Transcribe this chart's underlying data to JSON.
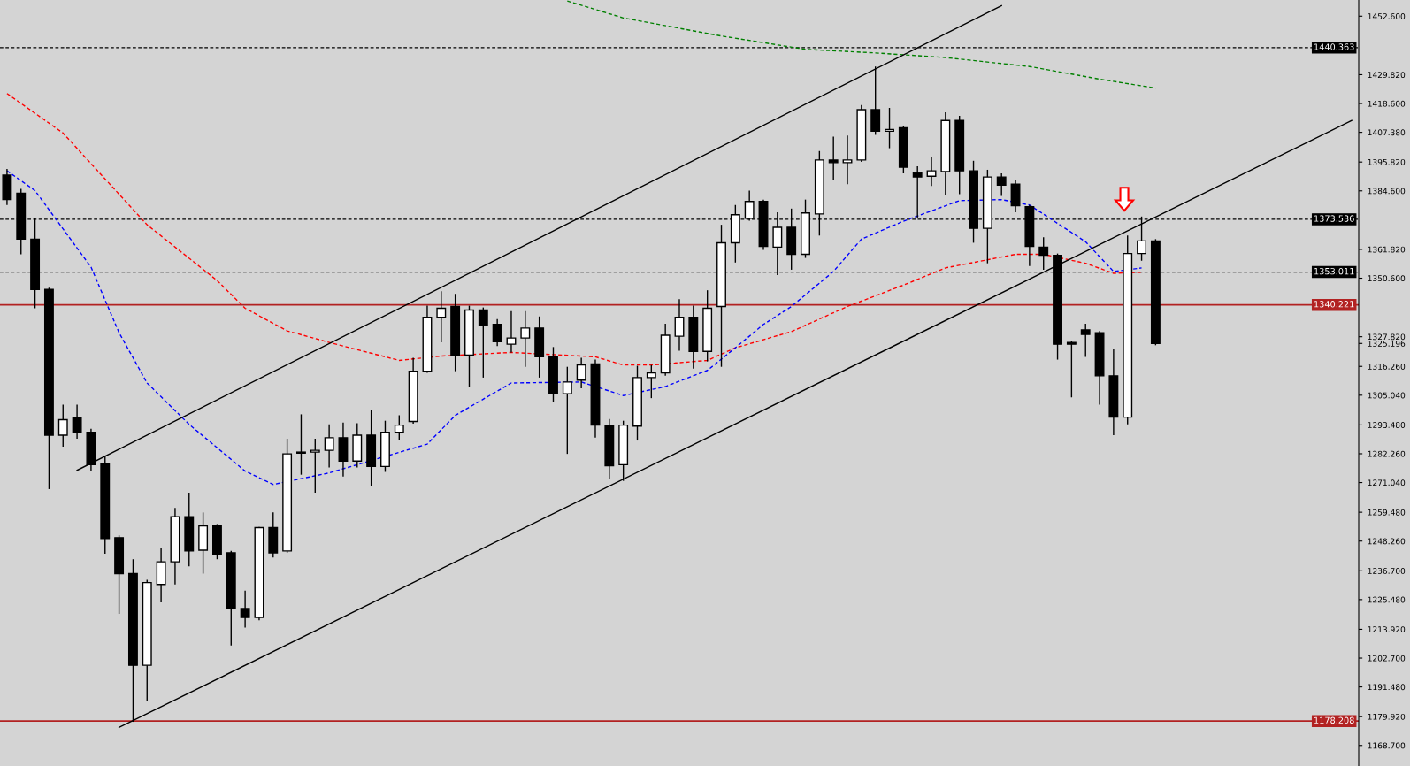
{
  "chart_data": {
    "type": "candlestick",
    "categories": [
      null,
      null,
      null,
      null,
      null,
      null,
      null,
      null,
      null,
      null,
      null,
      null,
      null,
      null,
      null,
      null,
      null,
      null,
      null,
      null,
      null,
      null,
      null,
      null,
      null,
      null,
      null,
      null,
      null,
      null,
      null,
      null,
      null,
      null,
      null,
      null,
      null,
      null,
      null,
      null,
      null,
      null,
      null,
      null,
      null,
      null,
      null,
      null,
      null,
      null,
      null,
      null,
      null,
      null,
      null,
      null,
      null,
      null,
      null,
      null,
      null,
      null,
      null,
      null,
      null,
      null,
      null,
      null,
      null,
      null,
      null,
      null,
      null,
      null,
      null,
      null,
      null,
      null,
      null,
      null,
      null,
      null,
      null,
      null,
      null,
      null,
      null,
      null,
      null,
      null,
      null,
      null,
      null,
      null,
      null,
      null,
      null
    ],
    "ohlc": [
      [
        1390.7,
        1393.1,
        1379.1,
        1381.2
      ],
      [
        1383.7,
        1385.4,
        1359.9,
        1365.8
      ],
      [
        1365.8,
        1374.2,
        1338.9,
        1346.2
      ],
      [
        1346.2,
        1346.9,
        1268.5,
        1289.5
      ],
      [
        1289.5,
        1301.4,
        1285.0,
        1295.5
      ],
      [
        1296.5,
        1301.4,
        1288.1,
        1290.6
      ],
      [
        1290.6,
        1292.0,
        1275.5,
        1278.0
      ],
      [
        1278.3,
        1281.5,
        1243.3,
        1249.3
      ],
      [
        1249.6,
        1250.5,
        1219.9,
        1235.6
      ],
      [
        1235.6,
        1241.2,
        1177.9,
        1199.9
      ],
      [
        1199.9,
        1233.2,
        1185.9,
        1232.1
      ],
      [
        1231.4,
        1245.4,
        1224.4,
        1240.2
      ],
      [
        1240.2,
        1261.2,
        1231.4,
        1257.7
      ],
      [
        1257.7,
        1267.1,
        1238.4,
        1244.4
      ],
      [
        1244.7,
        1259.4,
        1235.6,
        1254.2
      ],
      [
        1254.2,
        1254.9,
        1241.2,
        1243.0
      ],
      [
        1243.7,
        1244.5,
        1207.6,
        1222.0
      ],
      [
        1222.0,
        1229.0,
        1214.6,
        1218.5
      ],
      [
        1218.5,
        1253.8,
        1217.4,
        1253.5
      ],
      [
        1253.5,
        1259.4,
        1241.9,
        1243.7
      ],
      [
        1244.4,
        1288.1,
        1243.7,
        1282.2
      ],
      [
        1282.9,
        1297.6,
        1274.1,
        1282.5
      ],
      [
        1282.9,
        1288.1,
        1267.1,
        1283.6
      ],
      [
        1283.6,
        1293.7,
        1276.9,
        1288.5
      ],
      [
        1288.5,
        1294.4,
        1273.4,
        1279.4
      ],
      [
        1279.4,
        1294.1,
        1276.9,
        1289.5
      ],
      [
        1289.5,
        1299.3,
        1269.6,
        1277.3
      ],
      [
        1277.3,
        1295.1,
        1275.2,
        1290.6
      ],
      [
        1290.6,
        1297.2,
        1287.4,
        1293.4
      ],
      [
        1294.8,
        1319.6,
        1294.0,
        1314.4
      ],
      [
        1314.4,
        1339.9,
        1313.8,
        1335.4
      ],
      [
        1335.4,
        1345.5,
        1325.6,
        1338.9
      ],
      [
        1339.6,
        1344.5,
        1314.4,
        1320.7
      ],
      [
        1320.7,
        1339.9,
        1308.1,
        1338.2
      ],
      [
        1338.2,
        1339.2,
        1311.9,
        1332.2
      ],
      [
        1332.6,
        1334.7,
        1324.2,
        1325.9
      ],
      [
        1324.9,
        1337.8,
        1321.7,
        1327.3
      ],
      [
        1327.3,
        1337.8,
        1316.1,
        1331.2
      ],
      [
        1331.2,
        1335.7,
        1311.9,
        1320.0
      ],
      [
        1320.0,
        1323.8,
        1302.5,
        1305.6
      ],
      [
        1305.6,
        1316.1,
        1282.2,
        1310.2
      ],
      [
        1310.9,
        1319.6,
        1307.7,
        1316.8
      ],
      [
        1317.2,
        1318.9,
        1288.5,
        1293.4
      ],
      [
        1293.4,
        1295.8,
        1272.4,
        1277.6
      ],
      [
        1278.0,
        1295.1,
        1271.7,
        1293.4
      ],
      [
        1293.0,
        1316.5,
        1287.4,
        1311.9
      ],
      [
        1311.9,
        1316.8,
        1303.9,
        1313.7
      ],
      [
        1313.7,
        1332.9,
        1312.6,
        1328.4
      ],
      [
        1328.0,
        1342.4,
        1322.4,
        1335.4
      ],
      [
        1335.4,
        1339.9,
        1315.4,
        1322.1
      ],
      [
        1322.1,
        1345.9,
        1318.2,
        1338.9
      ],
      [
        1339.6,
        1371.4,
        1316.1,
        1364.4
      ],
      [
        1364.4,
        1379.1,
        1356.7,
        1375.3
      ],
      [
        1373.9,
        1384.7,
        1373.0,
        1380.5
      ],
      [
        1380.5,
        1381.2,
        1361.6,
        1363.0
      ],
      [
        1362.7,
        1376.3,
        1351.8,
        1370.4
      ],
      [
        1370.4,
        1377.7,
        1353.9,
        1359.9
      ],
      [
        1359.9,
        1381.2,
        1358.5,
        1376.0
      ],
      [
        1375.6,
        1400.1,
        1367.2,
        1396.6
      ],
      [
        1396.6,
        1405.7,
        1388.9,
        1395.6
      ],
      [
        1395.6,
        1406.1,
        1387.2,
        1396.6
      ],
      [
        1396.6,
        1418.0,
        1395.9,
        1416.2
      ],
      [
        1416.2,
        1433.0,
        1406.4,
        1407.8
      ],
      [
        1407.8,
        1416.9,
        1401.2,
        1408.5
      ],
      [
        1409.2,
        1409.9,
        1391.4,
        1393.8
      ],
      [
        1391.7,
        1394.2,
        1373.9,
        1390.0
      ],
      [
        1390.3,
        1397.7,
        1386.5,
        1392.4
      ],
      [
        1392.1,
        1415.2,
        1383.0,
        1412.0
      ],
      [
        1412.0,
        1413.8,
        1383.3,
        1392.4
      ],
      [
        1392.4,
        1396.3,
        1364.4,
        1370.0
      ],
      [
        1370.0,
        1392.8,
        1356.4,
        1390.0
      ],
      [
        1390.0,
        1391.4,
        1382.6,
        1386.8
      ],
      [
        1387.2,
        1388.9,
        1376.3,
        1378.8
      ],
      [
        1378.4,
        1379.1,
        1355.3,
        1363.0
      ],
      [
        1362.7,
        1366.5,
        1353.9,
        1359.5
      ],
      [
        1359.5,
        1360.2,
        1318.9,
        1324.9
      ],
      [
        1325.6,
        1326.3,
        1304.2,
        1324.9
      ],
      [
        1330.5,
        1332.9,
        1320.0,
        1328.7
      ],
      [
        1329.4,
        1330.0,
        1301.4,
        1312.6
      ],
      [
        1312.6,
        1323.1,
        1289.5,
        1296.5
      ],
      [
        1296.5,
        1367.2,
        1293.7,
        1360.2
      ],
      [
        1360.2,
        1374.6,
        1357.4,
        1365.1
      ],
      [
        1365.1,
        1365.8,
        1324.5,
        1325.2
      ],
      null,
      null,
      null,
      null,
      null,
      null,
      null,
      null,
      null,
      null,
      null,
      null,
      null,
      null
    ],
    "series": [
      {
        "type": "line",
        "color": "#ff0000",
        "line_style": "dashed",
        "values": [
          1422.5,
          null,
          null,
          null,
          1407.1,
          null,
          null,
          null,
          null,
          null,
          1371.4,
          null,
          null,
          null,
          null,
          1349.7,
          null,
          1338.9,
          null,
          null,
          1330.1,
          null,
          null,
          1325.6,
          null,
          null,
          null,
          null,
          1318.6,
          null,
          null,
          1320.3,
          null,
          null,
          null,
          null,
          1321.7,
          null,
          null,
          null,
          null,
          null,
          1320.0,
          null,
          1316.8,
          null,
          1316.8,
          null,
          null,
          null,
          1318.6,
          null,
          1323.5,
          null,
          null,
          null,
          1329.8,
          null,
          null,
          null,
          1339.6,
          null,
          null,
          null,
          1347.9,
          null,
          null,
          1354.6,
          null,
          null,
          null,
          null,
          1359.9,
          null,
          1359.9,
          null,
          null,
          1356.4,
          null,
          1352.5,
          null,
          1352.9,
          null,
          null,
          null,
          null,
          null,
          null,
          null,
          null,
          null,
          null,
          null,
          null,
          null,
          null,
          null
        ]
      },
      {
        "type": "line",
        "color": "#0000ff",
        "line_style": "dashed",
        "values": [
          1392.4,
          null,
          1384.7,
          null,
          null,
          null,
          1354.9,
          null,
          1329.4,
          null,
          1309.8,
          null,
          null,
          1293.7,
          null,
          null,
          null,
          1275.5,
          null,
          1270.3,
          null,
          null,
          null,
          1274.8,
          null,
          null,
          null,
          null,
          null,
          null,
          1286.0,
          null,
          1297.2,
          null,
          null,
          null,
          1309.8,
          null,
          null,
          null,
          null,
          1310.2,
          null,
          null,
          1304.9,
          null,
          null,
          1308.4,
          null,
          null,
          1314.7,
          null,
          1323.5,
          null,
          1332.6,
          null,
          1339.6,
          null,
          null,
          1353.2,
          null,
          1365.8,
          null,
          null,
          1372.8,
          null,
          null,
          null,
          1380.8,
          null,
          null,
          1381.2,
          null,
          1379.1,
          null,
          null,
          null,
          1364.8,
          null,
          1353.2,
          null,
          1354.6,
          null,
          null,
          null,
          null,
          null,
          null,
          null,
          null,
          null,
          null,
          null,
          null,
          null,
          null,
          null
        ]
      },
      {
        "type": "line",
        "color": "#008000",
        "line_style": "dashed",
        "values": [
          null,
          null,
          null,
          null,
          null,
          null,
          null,
          null,
          null,
          null,
          null,
          null,
          null,
          null,
          null,
          null,
          null,
          null,
          null,
          null,
          null,
          null,
          null,
          null,
          null,
          null,
          null,
          null,
          null,
          null,
          null,
          null,
          null,
          null,
          null,
          null,
          null,
          null,
          null,
          null,
          1458.5,
          null,
          null,
          null,
          1451.9,
          null,
          null,
          null,
          null,
          null,
          null,
          1444.9,
          null,
          null,
          null,
          null,
          null,
          1439.7,
          null,
          null,
          null,
          null,
          1438.3,
          null,
          null,
          null,
          null,
          1436.5,
          null,
          null,
          null,
          null,
          null,
          1433.0,
          null,
          null,
          null,
          null,
          1428.1,
          null,
          null,
          null,
          1424.6,
          null,
          null,
          null,
          null,
          null,
          null,
          null,
          null,
          null,
          null,
          null,
          null,
          null,
          null
        ]
      },
      {
        "type": "line",
        "color": "#000000",
        "line_style": "solid",
        "values": [
          null,
          null,
          null,
          null,
          null,
          1275.8,
          null,
          null,
          null,
          null,
          null,
          null,
          null,
          null,
          null,
          null,
          null,
          null,
          null,
          null,
          null,
          null,
          null,
          null,
          null,
          null,
          null,
          null,
          null,
          null,
          null,
          null,
          null,
          null,
          null,
          null,
          null,
          null,
          null,
          null,
          null,
          null,
          null,
          null,
          null,
          null,
          null,
          null,
          null,
          null,
          null,
          null,
          null,
          null,
          null,
          null,
          null,
          null,
          null,
          null,
          null,
          null,
          null,
          null,
          null,
          null,
          null,
          null,
          null,
          null,
          null,
          1456.7,
          null,
          null,
          null,
          null,
          null,
          null,
          null,
          null,
          null,
          null,
          null,
          null,
          null,
          null,
          null,
          null,
          null,
          null,
          null,
          null,
          null,
          null,
          null,
          null,
          null
        ]
      },
      {
        "type": "line",
        "color": "#000000",
        "line_style": "solid",
        "values": [
          null,
          null,
          null,
          null,
          null,
          null,
          null,
          null,
          1175.7,
          null,
          null,
          null,
          null,
          null,
          null,
          null,
          null,
          null,
          null,
          null,
          null,
          null,
          null,
          null,
          null,
          null,
          null,
          null,
          null,
          null,
          null,
          null,
          null,
          null,
          null,
          null,
          null,
          null,
          null,
          null,
          null,
          null,
          null,
          null,
          null,
          null,
          null,
          null,
          null,
          null,
          null,
          null,
          null,
          null,
          null,
          null,
          null,
          null,
          null,
          null,
          null,
          null,
          null,
          null,
          null,
          null,
          null,
          null,
          null,
          null,
          null,
          null,
          null,
          null,
          null,
          null,
          null,
          null,
          null,
          null,
          null,
          null,
          null,
          null,
          null,
          null,
          null,
          null,
          null,
          null,
          null,
          null,
          null,
          null,
          null,
          null,
          1412.0
        ]
      }
    ],
    "ylim": [
      1160.7,
      1458.9
    ],
    "yticks": [
      {
        "value": 1452.6,
        "label": "1452.600"
      },
      {
        "value": 1429.82,
        "label": "1429.820"
      },
      {
        "value": 1418.6,
        "label": "1418.600"
      },
      {
        "value": 1407.38,
        "label": "1407.380"
      },
      {
        "value": 1395.82,
        "label": "1395.820"
      },
      {
        "value": 1384.6,
        "label": "1384.600"
      },
      {
        "value": 1361.82,
        "label": "1361.820"
      },
      {
        "value": 1350.6,
        "label": "1350.600"
      },
      {
        "value": 1327.82,
        "label": "1327.820"
      },
      {
        "value": 1325.196,
        "label": "1325.196"
      },
      {
        "value": 1316.26,
        "label": "1316.260"
      },
      {
        "value": 1305.04,
        "label": "1305.040"
      },
      {
        "value": 1293.48,
        "label": "1293.480"
      },
      {
        "value": 1282.26,
        "label": "1282.260"
      },
      {
        "value": 1271.04,
        "label": "1271.040"
      },
      {
        "value": 1259.48,
        "label": "1259.480"
      },
      {
        "value": 1248.26,
        "label": "1248.260"
      },
      {
        "value": 1236.7,
        "label": "1236.700"
      },
      {
        "value": 1225.48,
        "label": "1225.480"
      },
      {
        "value": 1213.92,
        "label": "1213.920"
      },
      {
        "value": 1202.7,
        "label": "1202.700"
      },
      {
        "value": 1191.48,
        "label": "1191.480"
      },
      {
        "value": 1179.92,
        "label": "1179.920"
      },
      {
        "value": 1168.7,
        "label": "1168.700"
      }
    ],
    "tick_labels": "y",
    "ref_lines": [
      {
        "axis": "y",
        "value": 1440.363,
        "label": "1440.363",
        "color": "#000000",
        "line_style": "dashed"
      },
      {
        "axis": "y",
        "value": 1373.536,
        "label": "1373.536",
        "color": "#000000",
        "line_style": "dashed"
      },
      {
        "axis": "y",
        "value": 1353.011,
        "label": "1353.011",
        "color": "#000000",
        "line_style": "dashed"
      },
      {
        "axis": "y",
        "value": 1340.221,
        "label": "1340.221",
        "color": "#b22222",
        "line_style": "solid"
      },
      {
        "axis": "y",
        "value": 1178.208,
        "label": "1178.208",
        "color": "#b22222",
        "line_style": "solid"
      }
    ]
  }
}
